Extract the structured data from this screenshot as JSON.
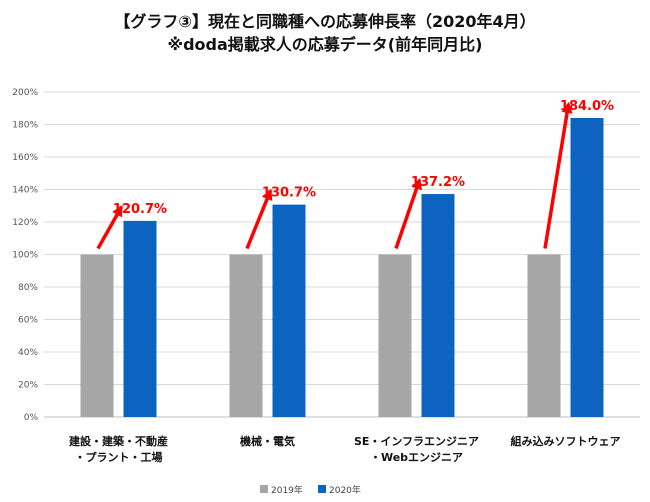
{
  "chart_data": {
    "type": "bar",
    "title": "【グラフ③】現在と同職種への応募伸長率（2020年4月）",
    "subtitle": "※doda掲載求人の応募データ(前年同月比)",
    "categories": [
      [
        "建設・建築・不動産",
        "・プラント・工場"
      ],
      [
        "機械・電気"
      ],
      [
        "SE・インフラエンジニア",
        "・Webエンジニア"
      ],
      [
        "組み込みソフトウェア"
      ]
    ],
    "series": [
      {
        "name": "2019年",
        "values": [
          100,
          100,
          100,
          100
        ],
        "color": "#a6a6a6"
      },
      {
        "name": "2020年",
        "values": [
          120.7,
          130.7,
          137.2,
          184.0
        ],
        "color": "#0c64c0"
      }
    ],
    "data_labels": [
      "120.7%",
      "130.7%",
      "137.2%",
      "184.0%"
    ],
    "y_ticks": [
      "0%",
      "20%",
      "40%",
      "60%",
      "80%",
      "100%",
      "120%",
      "140%",
      "160%",
      "180%",
      "200%"
    ],
    "ylim": [
      0,
      200
    ],
    "grid": true,
    "legend_position": "bottom",
    "annotation_arrow_color": "#ff0000"
  }
}
